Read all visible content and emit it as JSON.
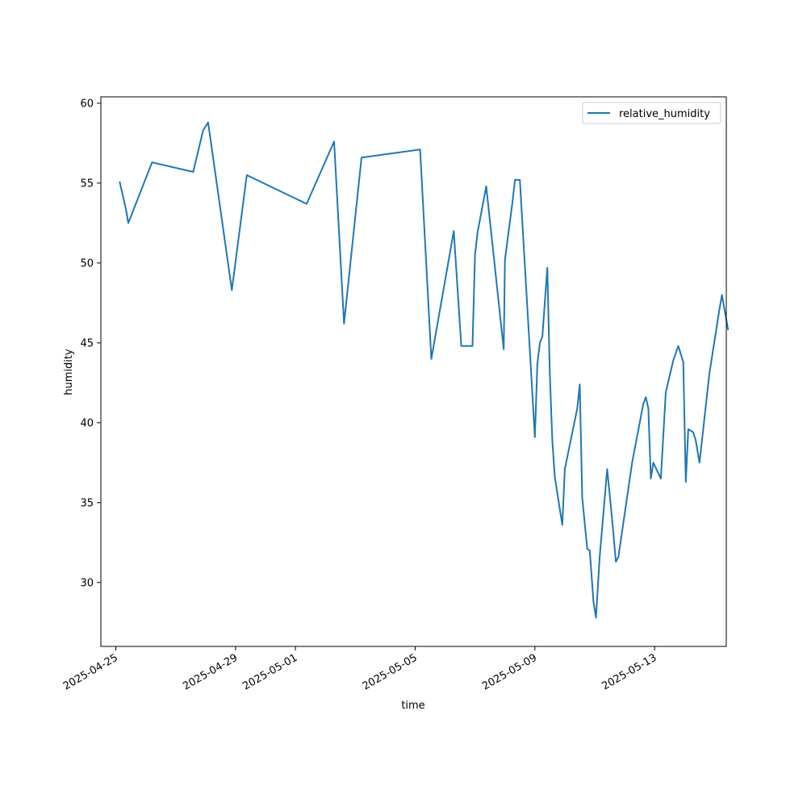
{
  "chart_data": {
    "type": "line",
    "xlabel": "time",
    "ylabel": "humidity",
    "x_type": "datetime",
    "xlim": [
      "2025-04-24T12:00",
      "2025-05-15T09:30"
    ],
    "ylim": [
      26.0,
      60.4
    ],
    "x_ticks": [
      "2025-04-25",
      "2025-04-29",
      "2025-05-01",
      "2025-05-05",
      "2025-05-09",
      "2025-05-13"
    ],
    "y_ticks": [
      30,
      35,
      40,
      45,
      50,
      55,
      60
    ],
    "grid": false,
    "legend_position": "top-right",
    "colors": {
      "line": "#1f77b4"
    },
    "series": [
      {
        "name": "relative_humidity",
        "points": [
          [
            "2025-04-25T03:00",
            55.1
          ],
          [
            "2025-04-25T08:00",
            53.4
          ],
          [
            "2025-04-25T10:00",
            52.5
          ],
          [
            "2025-04-26T05:00",
            56.3
          ],
          [
            "2025-04-27T14:00",
            55.7
          ],
          [
            "2025-04-27T22:00",
            58.3
          ],
          [
            "2025-04-28T02:00",
            58.8
          ],
          [
            "2025-04-28T21:00",
            48.3
          ],
          [
            "2025-04-29T09:00",
            55.5
          ],
          [
            "2025-05-01T09:00",
            53.7
          ],
          [
            "2025-05-02T07:00",
            57.6
          ],
          [
            "2025-05-02T15:00",
            46.2
          ],
          [
            "2025-05-03T05:00",
            56.6
          ],
          [
            "2025-05-05T04:00",
            57.1
          ],
          [
            "2025-05-05T13:00",
            44.0
          ],
          [
            "2025-05-06T07:00",
            52.0
          ],
          [
            "2025-05-06T13:00",
            44.8
          ],
          [
            "2025-05-06T22:00",
            44.8
          ],
          [
            "2025-05-07T00:00",
            50.5
          ],
          [
            "2025-05-07T02:00",
            51.9
          ],
          [
            "2025-05-07T09:00",
            54.8
          ],
          [
            "2025-05-07T23:00",
            44.6
          ],
          [
            "2025-05-08T00:00",
            50.2
          ],
          [
            "2025-05-08T06:00",
            53.8
          ],
          [
            "2025-05-08T08:00",
            55.2
          ],
          [
            "2025-05-08T12:00",
            55.2
          ],
          [
            "2025-05-08T22:00",
            41.8
          ],
          [
            "2025-05-09T00:00",
            39.1
          ],
          [
            "2025-05-09T02:00",
            43.7
          ],
          [
            "2025-05-09T04:00",
            45.0
          ],
          [
            "2025-05-09T06:00",
            45.4
          ],
          [
            "2025-05-09T10:00",
            49.7
          ],
          [
            "2025-05-09T12:00",
            43.1
          ],
          [
            "2025-05-09T14:00",
            38.9
          ],
          [
            "2025-05-09T16:00",
            36.6
          ],
          [
            "2025-05-09T22:00",
            33.6
          ],
          [
            "2025-05-10T00:00",
            37.1
          ],
          [
            "2025-05-10T10:00",
            40.9
          ],
          [
            "2025-05-10T12:00",
            42.4
          ],
          [
            "2025-05-10T14:00",
            35.3
          ],
          [
            "2025-05-10T18:00",
            32.1
          ],
          [
            "2025-05-10T20:00",
            32.0
          ],
          [
            "2025-05-10T23:00",
            28.8
          ],
          [
            "2025-05-11T01:00",
            27.8
          ],
          [
            "2025-05-11T04:00",
            31.6
          ],
          [
            "2025-05-11T10:00",
            37.1
          ],
          [
            "2025-05-11T14:00",
            33.9
          ],
          [
            "2025-05-11T17:00",
            31.3
          ],
          [
            "2025-05-11T19:00",
            31.6
          ],
          [
            "2025-05-12T06:00",
            37.5
          ],
          [
            "2025-05-12T15:00",
            41.2
          ],
          [
            "2025-05-12T17:00",
            41.6
          ],
          [
            "2025-05-12T19:00",
            40.9
          ],
          [
            "2025-05-12T21:00",
            36.5
          ],
          [
            "2025-05-12T23:00",
            37.5
          ],
          [
            "2025-05-13T05:00",
            36.5
          ],
          [
            "2025-05-13T09:00",
            41.9
          ],
          [
            "2025-05-13T15:00",
            43.9
          ],
          [
            "2025-05-13T19:00",
            44.8
          ],
          [
            "2025-05-13T23:00",
            43.8
          ],
          [
            "2025-05-14T01:00",
            36.3
          ],
          [
            "2025-05-14T03:00",
            39.6
          ],
          [
            "2025-05-14T07:00",
            39.4
          ],
          [
            "2025-05-14T09:00",
            38.9
          ],
          [
            "2025-05-14T12:00",
            37.5
          ],
          [
            "2025-05-14T20:00",
            43.1
          ],
          [
            "2025-05-15T04:00",
            47.1
          ],
          [
            "2025-05-15T06:00",
            48.0
          ],
          [
            "2025-05-15T11:00",
            45.8
          ]
        ]
      }
    ]
  }
}
